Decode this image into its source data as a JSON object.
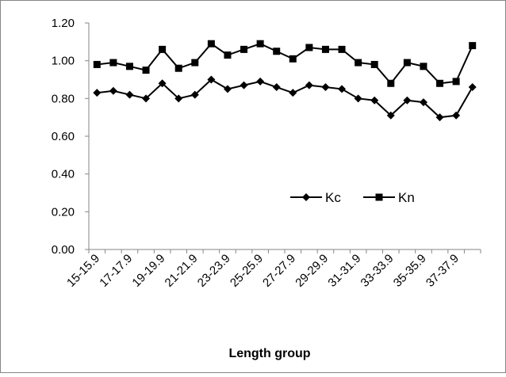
{
  "chart_data": {
    "type": "line",
    "x_label": "Length group",
    "categories": [
      "15-15.9",
      null,
      "17-17.9",
      null,
      "19-19.9",
      null,
      "21-21.9",
      null,
      "23-23.9",
      null,
      "25-25.9",
      null,
      "27-27.9",
      null,
      "29-29.9",
      null,
      "31-31.9",
      null,
      "33-33.9",
      null,
      "35-35.9",
      null,
      "37-37.9",
      null
    ],
    "series": [
      {
        "name": "Kc",
        "color": "#000000",
        "marker": "diamond",
        "values": [
          0.83,
          0.84,
          0.82,
          0.8,
          0.88,
          0.8,
          0.82,
          0.9,
          0.85,
          0.87,
          0.89,
          0.86,
          0.83,
          0.87,
          0.86,
          0.85,
          0.8,
          0.79,
          0.71,
          0.79,
          0.78,
          0.7,
          0.71,
          0.86
        ]
      },
      {
        "name": "Kn",
        "color": "#000000",
        "marker": "square",
        "values": [
          0.98,
          0.99,
          0.97,
          0.95,
          1.06,
          0.96,
          0.99,
          1.09,
          1.03,
          1.06,
          1.09,
          1.05,
          1.01,
          1.07,
          1.06,
          1.06,
          0.99,
          0.98,
          0.88,
          0.99,
          0.97,
          0.88,
          0.89,
          1.08
        ]
      }
    ],
    "ylim": [
      0,
      1.2
    ],
    "yticks": [
      {
        "value": 0,
        "label": "0.00"
      },
      {
        "value": 0.2,
        "label": "0.20"
      },
      {
        "value": 0.4,
        "label": "0.40"
      },
      {
        "value": 0.6,
        "label": "0.60"
      },
      {
        "value": 0.8,
        "label": "0.80"
      },
      {
        "value": 1.0,
        "label": "1.00"
      },
      {
        "value": 1.2,
        "label": "1.20"
      }
    ],
    "grid": false
  }
}
